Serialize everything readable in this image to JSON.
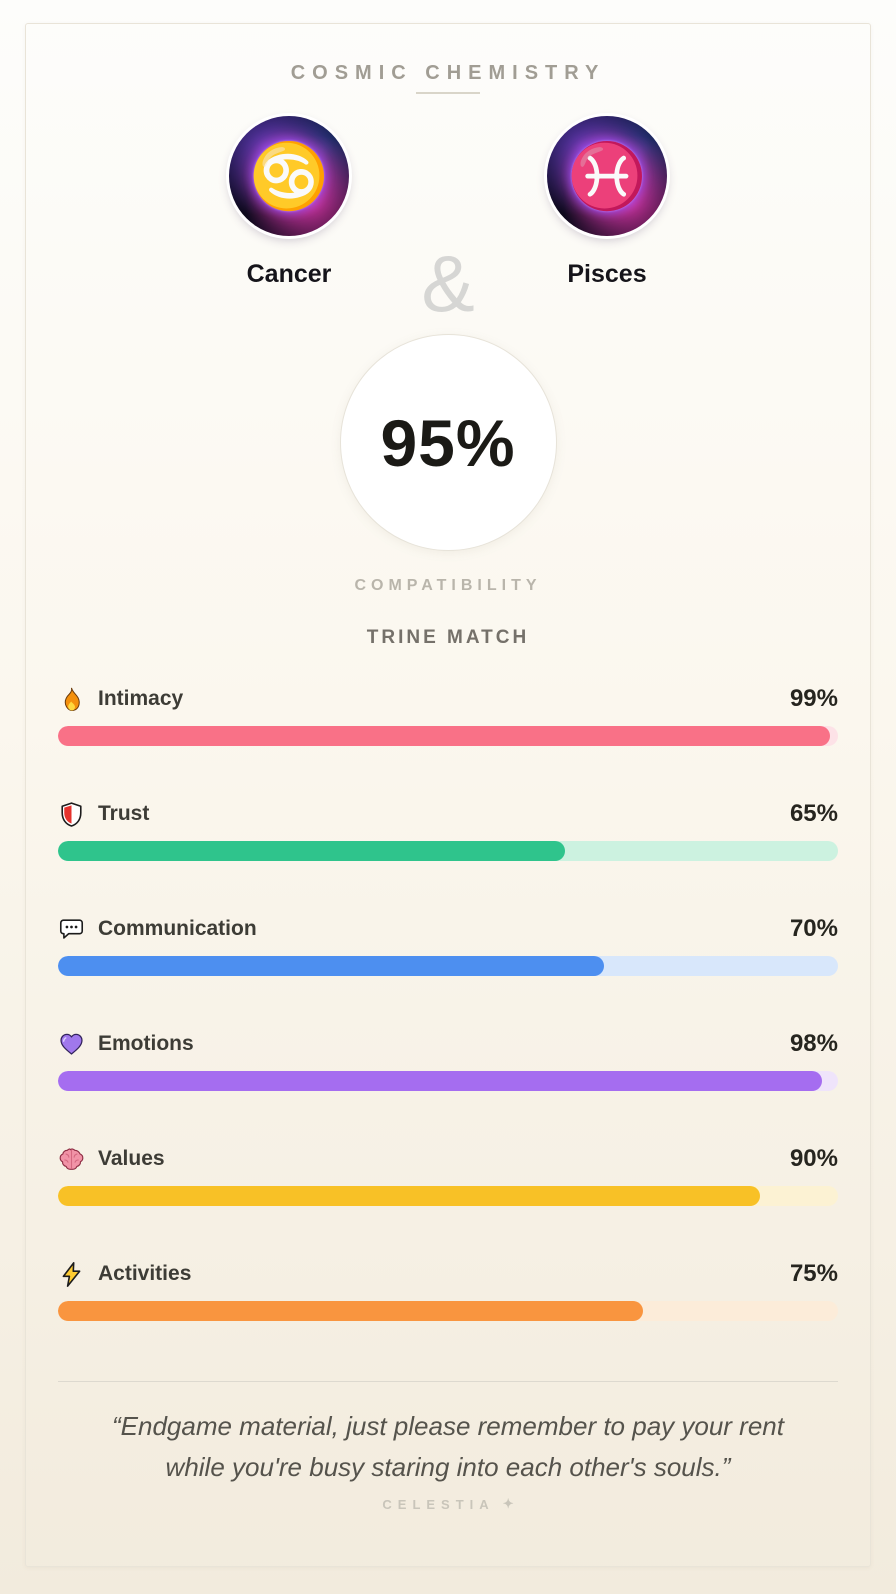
{
  "header": {
    "title": "COSMIC CHEMISTRY"
  },
  "pair": {
    "left": {
      "name": "Cancer",
      "symbol": "♋"
    },
    "right": {
      "name": "Pisces",
      "symbol": "♓"
    },
    "separator": "&"
  },
  "score": {
    "value": "95%",
    "label": "COMPATIBILITY",
    "match_type": "TRINE MATCH"
  },
  "stats": [
    {
      "label": "Intimacy",
      "icon": "fire-icon",
      "percent": 99,
      "display": "99%",
      "color": "#f97187",
      "track": "#fde2e7"
    },
    {
      "label": "Trust",
      "icon": "shield-icon",
      "percent": 65,
      "display": "65%",
      "color": "#2fc48c",
      "track": "#ccf2e0"
    },
    {
      "label": "Communication",
      "icon": "speech-bubble-icon",
      "percent": 70,
      "display": "70%",
      "color": "#4d8ff0",
      "track": "#d8e7fb"
    },
    {
      "label": "Emotions",
      "icon": "heart-icon",
      "percent": 98,
      "display": "98%",
      "color": "#a56df0",
      "track": "#efe4fb"
    },
    {
      "label": "Values",
      "icon": "brain-icon",
      "percent": 90,
      "display": "90%",
      "color": "#f8c126",
      "track": "#fcf2d3"
    },
    {
      "label": "Activities",
      "icon": "lightning-icon",
      "percent": 75,
      "display": "75%",
      "color": "#f9953f",
      "track": "#fcecd9"
    }
  ],
  "quote": {
    "text": "“Endgame material, just please remember to pay your rent while you're busy staring into each other's souls.”"
  },
  "brand": {
    "name": "CELESTIA",
    "sparkle": "✦"
  }
}
